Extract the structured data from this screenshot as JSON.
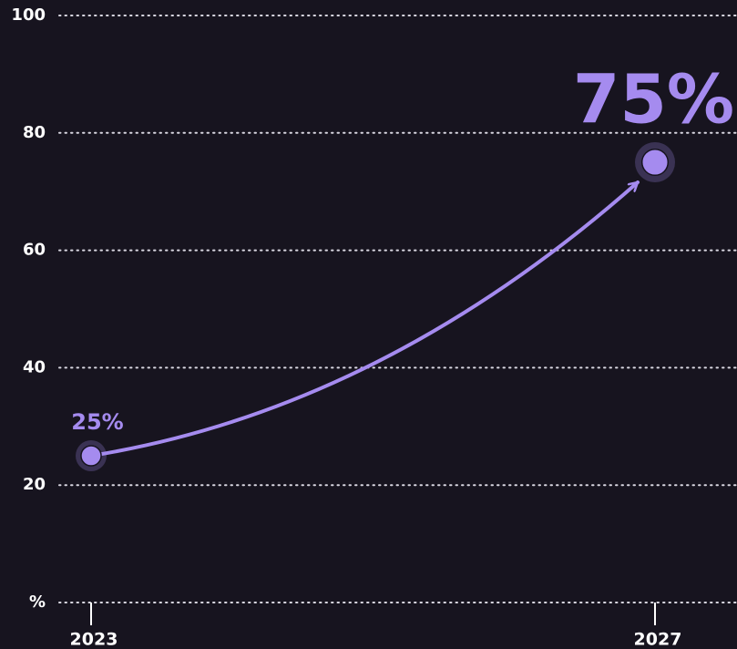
{
  "chart_data": {
    "type": "line",
    "categories": [
      "2023",
      "2027"
    ],
    "values": [
      25,
      75
    ],
    "value_labels": [
      "25%",
      "75%"
    ],
    "color": "#a58bef",
    "ylim": [
      0,
      100
    ],
    "yticks": [
      {
        "value": 0,
        "label": "%"
      },
      20,
      40,
      60,
      80,
      100
    ],
    "grid": true
  }
}
